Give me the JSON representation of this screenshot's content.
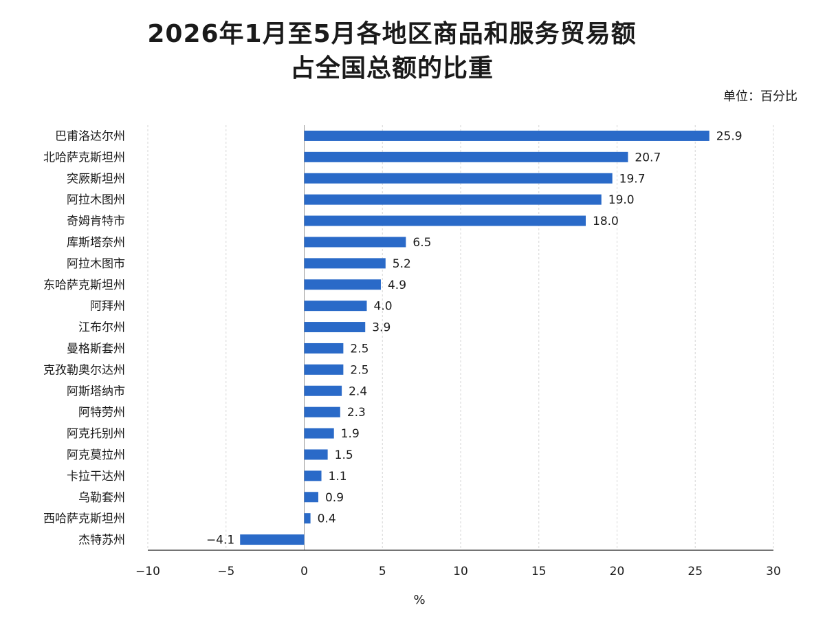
{
  "header": {
    "title_line1": "2026年1月至5月各地区商品和服务贸易额",
    "title_line2": "占全国总额的比重",
    "unit": "单位：百分比"
  },
  "chart_data": {
    "type": "bar",
    "orientation": "horizontal",
    "title": "2026年1月至5月各地区商品和服务贸易额占全国总额的比重",
    "unit": "单位：百分比",
    "xlabel": "%",
    "xlim": [
      -10,
      30
    ],
    "xticks": [
      -10,
      -5,
      0,
      5,
      10,
      15,
      20,
      25,
      30
    ],
    "xtick_labels": [
      "−10",
      "−5",
      "0",
      "5",
      "10",
      "15",
      "20",
      "25",
      "30"
    ],
    "grid": "vertical-dashed",
    "bar_color": "#2a6ac8",
    "categories": [
      "巴甫洛达尔州",
      "北哈萨克斯坦州",
      "突厥斯坦州",
      "阿拉木图州",
      "奇姆肯特市",
      "库斯塔奈州",
      "阿拉木图市",
      "东哈萨克斯坦州",
      "阿拜州",
      "江布尔州",
      "曼格斯套州",
      "克孜勒奥尔达州",
      "阿斯塔纳市",
      "阿特劳州",
      "阿克托别州",
      "阿克莫拉州",
      "卡拉干达州",
      "乌勒套州",
      "西哈萨克斯坦州",
      "杰特苏州"
    ],
    "values": [
      25.9,
      20.7,
      19.7,
      19.0,
      18.0,
      6.5,
      5.2,
      4.9,
      4.0,
      3.9,
      2.5,
      2.5,
      2.4,
      2.3,
      1.9,
      1.5,
      1.1,
      0.9,
      0.4,
      -4.1
    ],
    "value_labels": [
      "25.9",
      "20.7",
      "19.7",
      "19.0",
      "18.0",
      "6.5",
      "5.2",
      "4.9",
      "4.0",
      "3.9",
      "2.5",
      "2.5",
      "2.4",
      "2.3",
      "1.9",
      "1.5",
      "1.1",
      "0.9",
      "0.4",
      "−4.1"
    ]
  }
}
